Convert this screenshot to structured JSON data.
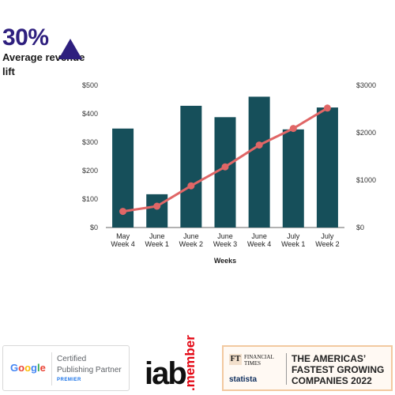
{
  "kpi": {
    "value": "30%",
    "label": "Average revenue lift",
    "color": "#2e1f7e"
  },
  "chart_data": {
    "type": "bar",
    "categories": [
      [
        "May",
        "Week 4"
      ],
      [
        "June",
        "Week 1"
      ],
      [
        "June",
        "Week 2"
      ],
      [
        "June",
        "Week 3"
      ],
      [
        "June",
        "Week 4"
      ],
      [
        "July",
        "Week 1"
      ],
      [
        "July",
        "Week 2"
      ]
    ],
    "xlabel": "Weeks",
    "series": [
      {
        "type": "bar",
        "axis": "left",
        "color": "#164f5a",
        "values": [
          348,
          117,
          428,
          388,
          460,
          345,
          422
        ]
      },
      {
        "type": "line",
        "axis": "right",
        "color": "#e06666",
        "values": [
          340,
          450,
          880,
          1280,
          1740,
          2090,
          2520
        ]
      }
    ],
    "ylim_left": [
      0,
      500
    ],
    "ylim_right": [
      0,
      3000
    ],
    "left_ticks": [
      "$0",
      "$100",
      "$200",
      "$300",
      "$400",
      "$500"
    ],
    "left_tick_values": [
      0,
      100,
      200,
      300,
      400,
      500
    ],
    "right_ticks": [
      "$0",
      "$1000",
      "$2000",
      "$3000"
    ],
    "right_tick_values": [
      0,
      1000,
      2000,
      3000
    ],
    "grid": false
  },
  "badges": {
    "google": {
      "logo": "Google",
      "line1": "Certified",
      "line2": "Publishing Partner",
      "line3": "PREMIER"
    },
    "iab": {
      "word": "iab",
      "suffix": ".member"
    },
    "ft": {
      "mark": "FT",
      "line1": "FINANCIAL",
      "line2": "TIMES",
      "statista": "statista",
      "headline1": "THE AMERICAS’",
      "headline2": "FASTEST GROWING",
      "headline3": "COMPANIES 2022"
    }
  }
}
